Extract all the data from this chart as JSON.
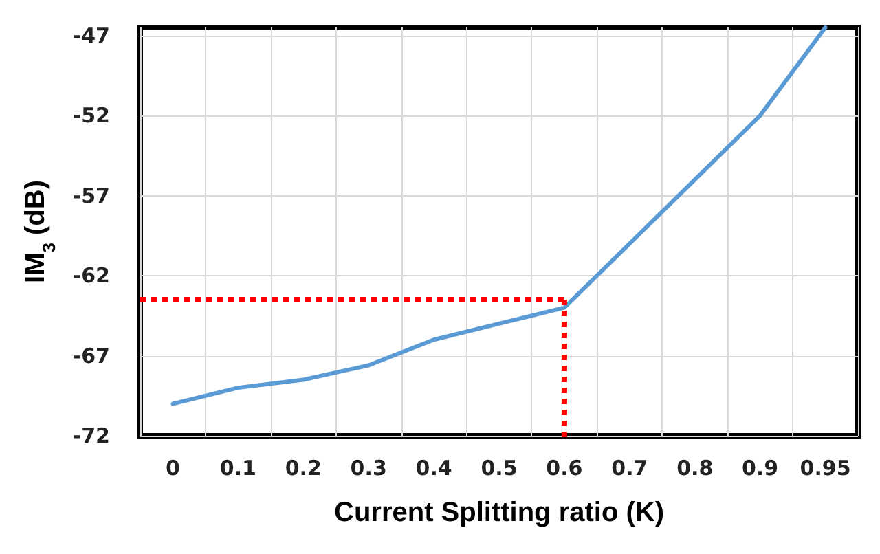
{
  "chart_data": {
    "type": "line",
    "xlabel": "Current Splitting ratio (K)",
    "ylabel": "IM$_{3}$ (dB)",
    "categories": [
      "0",
      "0.1",
      "0.2",
      "0.3",
      "0.4",
      "0.5",
      "0.6",
      "0.7",
      "0.8",
      "0.9",
      "0.95"
    ],
    "series": [
      {
        "color": "#5b9bd5",
        "values": [
          -70,
          -69,
          -68.5,
          -67.6,
          -66,
          -65,
          -64,
          -60,
          -56,
          -52,
          -46.5
        ]
      }
    ],
    "ylim": [
      -72,
      -46.5
    ],
    "yticks": [
      -72,
      -67,
      -62,
      -57,
      -52,
      -47
    ],
    "grid": true,
    "marker": "none",
    "line_style": "solid",
    "ref_lines": [
      {
        "axis": "y",
        "value": -63.5,
        "color": "#ff0000",
        "line_style": "dotted"
      },
      {
        "axis": "x",
        "value": "0.6",
        "color": "#ff0000",
        "line_style": "dotted"
      }
    ]
  }
}
